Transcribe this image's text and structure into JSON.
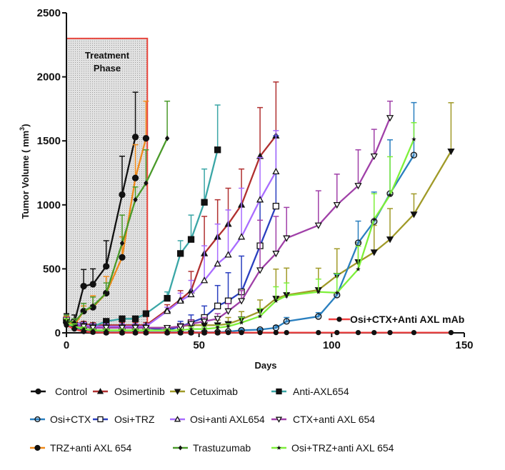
{
  "chart_data": {
    "type": "line",
    "xlabel": "Days",
    "ylabel": "Tumor Volume ( mm",
    "ylabel_sup": "3",
    "ylabel_close": ")",
    "xlim": [
      0,
      150
    ],
    "ylim": [
      0,
      2500
    ],
    "xticks": [
      "0",
      "50",
      "100",
      "150"
    ],
    "yticks": [
      "0",
      "500",
      "1000",
      "1500",
      "2000",
      "2500"
    ],
    "grid": false,
    "legend_placement": "bottom",
    "annotation": {
      "line1": "Treatment",
      "line2": "Phase",
      "x_range": [
        0,
        30.5
      ],
      "y_top": 2300,
      "color": "#e8453c"
    },
    "series": [
      {
        "name": "Control",
        "color": "#111111",
        "marker": "circle-filled",
        "x": [
          0,
          3,
          6.5,
          10,
          15,
          21,
          26
        ],
        "y": [
          100,
          80,
          365,
          380,
          520,
          1080,
          1530
        ],
        "err": [
          50,
          60,
          130,
          120,
          200,
          300,
          350
        ]
      },
      {
        "name": "Osimertinib",
        "color": "#b03030",
        "marker": "triangle-filled",
        "x": [
          0,
          3,
          6.5,
          10,
          15,
          21,
          26,
          30,
          38,
          43,
          47,
          52,
          57,
          61,
          66,
          73,
          79
        ],
        "y": [
          100,
          80,
          70,
          60,
          60,
          60,
          60,
          60,
          180,
          260,
          330,
          620,
          750,
          850,
          1000,
          1380,
          1540
        ],
        "err": [
          40,
          30,
          20,
          20,
          20,
          20,
          20,
          20,
          40,
          70,
          150,
          290,
          290,
          280,
          280,
          380,
          420
        ]
      },
      {
        "name": "Cetuximab",
        "color": "#a09a28",
        "marker": "triangle-down-filled",
        "x": [
          0,
          3,
          6.5,
          10,
          15,
          21,
          26,
          30,
          38,
          43,
          47,
          52,
          57,
          61,
          66,
          73,
          79,
          83,
          95,
          102,
          110,
          116,
          122,
          131,
          145
        ],
        "y": [
          90,
          60,
          50,
          40,
          40,
          40,
          40,
          40,
          40,
          50,
          60,
          60,
          60,
          70,
          106,
          167,
          268,
          296,
          335,
          447,
          553,
          630,
          731,
          926,
          1418
        ],
        "err": [
          30,
          20,
          15,
          15,
          15,
          15,
          15,
          15,
          15,
          20,
          30,
          40,
          40,
          50,
          60,
          90,
          230,
          210,
          170,
          210,
          150,
          210,
          240,
          160,
          380
        ]
      },
      {
        "name": "Anti-AXL654",
        "color": "#3aa6a6",
        "marker": "square-filled",
        "x": [
          0,
          3,
          6.5,
          10,
          15,
          21,
          26,
          30,
          38,
          43,
          47,
          52,
          57
        ],
        "y": [
          100,
          60,
          60,
          50,
          90,
          110,
          110,
          150,
          270,
          620,
          730,
          1020,
          1430
        ],
        "err": [
          40,
          30,
          20,
          20,
          20,
          20,
          20,
          20,
          50,
          100,
          190,
          260,
          350
        ]
      },
      {
        "name": "Osi+CTX",
        "color": "#2a7fbf",
        "marker": "circle-open",
        "x": [
          0,
          3,
          6.5,
          10,
          15,
          21,
          26,
          30,
          38,
          43,
          47,
          52,
          57,
          61,
          66,
          73,
          79,
          83,
          95,
          102,
          110,
          116,
          122,
          131
        ],
        "y": [
          80,
          40,
          20,
          10,
          5,
          5,
          5,
          5,
          5,
          5,
          5,
          5,
          5,
          10,
          20,
          25,
          40,
          90,
          128,
          296,
          703,
          870,
          1088,
          1389
        ],
        "err": [
          30,
          20,
          10,
          5,
          5,
          5,
          5,
          5,
          5,
          5,
          5,
          5,
          5,
          5,
          10,
          10,
          15,
          30,
          30,
          160,
          170,
          230,
          420,
          410
        ]
      },
      {
        "name": "Osi+TRZ",
        "color": "#2a3fbf",
        "marker": "square-open",
        "x": [
          0,
          3,
          6.5,
          10,
          15,
          21,
          26,
          30,
          38,
          43,
          47,
          52,
          57,
          61,
          66,
          73,
          79
        ],
        "y": [
          100,
          80,
          50,
          40,
          40,
          40,
          40,
          40,
          20,
          50,
          80,
          120,
          210,
          250,
          320,
          680,
          990
        ],
        "err": [
          40,
          30,
          20,
          15,
          15,
          15,
          15,
          15,
          15,
          40,
          60,
          90,
          160,
          220,
          280,
          350,
          550
        ]
      },
      {
        "name": "Osi+anti AXL654",
        "color": "#a86cff",
        "marker": "triangle-open",
        "x": [
          0,
          3,
          6.5,
          10,
          15,
          21,
          26,
          30,
          38,
          43,
          47,
          52,
          57,
          61,
          66,
          73,
          79
        ],
        "y": [
          100,
          80,
          60,
          50,
          50,
          50,
          50,
          50,
          170,
          250,
          300,
          410,
          540,
          610,
          750,
          1040,
          1260
        ],
        "err": [
          40,
          30,
          20,
          20,
          20,
          20,
          20,
          20,
          30,
          60,
          110,
          270,
          310,
          350,
          380,
          330,
          320
        ]
      },
      {
        "name": "CTX+anti AXL 654",
        "color": "#a040a8",
        "marker": "triangle-down-open",
        "x": [
          0,
          3,
          6.5,
          10,
          15,
          21,
          26,
          30,
          38,
          43,
          47,
          52,
          57,
          61,
          66,
          73,
          79,
          83,
          95,
          102,
          110,
          116,
          122
        ],
        "y": [
          90,
          60,
          50,
          40,
          40,
          40,
          40,
          40,
          40,
          50,
          70,
          90,
          110,
          170,
          250,
          490,
          620,
          740,
          840,
          1000,
          1150,
          1380,
          1680
        ],
        "err": [
          30,
          20,
          15,
          15,
          15,
          15,
          15,
          15,
          15,
          20,
          30,
          30,
          40,
          60,
          80,
          390,
          290,
          240,
          270,
          240,
          280,
          210,
          130
        ]
      },
      {
        "name": "TRZ+anti AXL 654",
        "color": "#f08a1a",
        "marker": "circle-filled",
        "x": [
          0,
          3,
          6.5,
          10,
          15,
          21,
          26,
          30
        ],
        "y": [
          90,
          60,
          170,
          200,
          310,
          590,
          1210,
          1520
        ],
        "err": [
          40,
          30,
          40,
          90,
          130,
          160,
          260,
          290
        ]
      },
      {
        "name": "Trastuzumab",
        "color": "#4a9a2a",
        "marker": "diamond-filled",
        "x": [
          0,
          3,
          6.5,
          10,
          15,
          21,
          26,
          30,
          38
        ],
        "y": [
          100,
          80,
          170,
          210,
          310,
          700,
          1040,
          1170,
          1520
        ],
        "err": [
          40,
          30,
          60,
          70,
          80,
          220,
          100,
          260,
          290
        ]
      },
      {
        "name": "Osi+TRZ+anti AXL 654",
        "color": "#7ef03a",
        "marker": "star",
        "x": [
          0,
          3,
          6.5,
          10,
          15,
          21,
          26,
          30,
          38,
          43,
          47,
          52,
          57,
          61,
          66,
          73,
          79,
          83,
          95,
          102,
          110,
          116,
          122,
          131
        ],
        "y": [
          80,
          50,
          30,
          20,
          20,
          20,
          20,
          20,
          20,
          20,
          30,
          30,
          40,
          50,
          80,
          130,
          250,
          290,
          320,
          313,
          497,
          887,
          1076,
          1512
        ],
        "err": [
          30,
          20,
          15,
          10,
          10,
          10,
          10,
          10,
          10,
          10,
          15,
          15,
          20,
          20,
          40,
          60,
          110,
          100,
          100,
          150,
          180,
          200,
          300,
          130
        ]
      },
      {
        "name": "Osi+CTX+Anti AXL mAb",
        "color": "#f04040",
        "marker": "circle-filled-small",
        "x": [
          0,
          3,
          6.5,
          10,
          15,
          21,
          26,
          30,
          38,
          43,
          47,
          52,
          57,
          61,
          66,
          73,
          79,
          83,
          95,
          102,
          110,
          116,
          122,
          131,
          145
        ],
        "y": [
          60,
          30,
          10,
          5,
          2,
          2,
          2,
          2,
          2,
          2,
          2,
          2,
          2,
          2,
          2,
          2,
          2,
          2,
          2,
          2,
          2,
          2,
          2,
          2,
          2
        ],
        "err": []
      }
    ]
  }
}
